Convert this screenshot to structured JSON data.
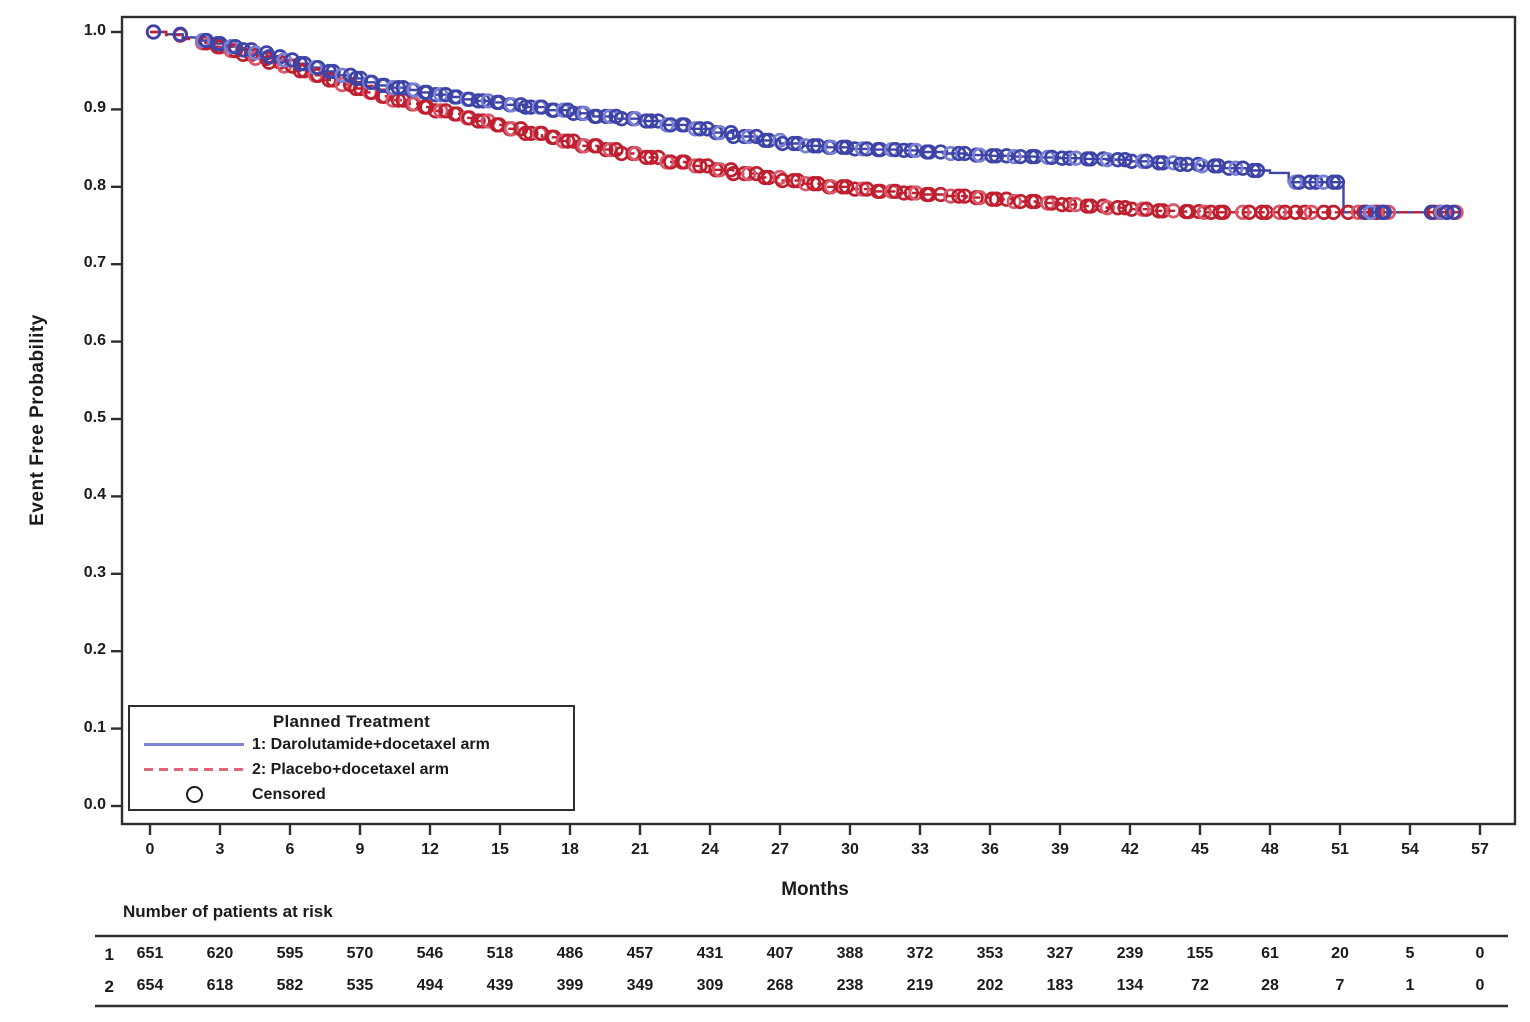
{
  "chart_data": {
    "type": "line",
    "subtype": "kaplan-meier-step",
    "title": "",
    "xlabel": "Months",
    "ylabel": "Event Free Probability",
    "xlim": [
      0,
      57
    ],
    "ylim": [
      0.0,
      1.0
    ],
    "grid": false,
    "legend_position": "bottom-left-inside",
    "x_ticks": [
      0,
      3,
      6,
      9,
      12,
      15,
      18,
      21,
      24,
      27,
      30,
      33,
      36,
      39,
      42,
      45,
      48,
      51,
      54,
      57
    ],
    "y_tick_labels": [
      "0.0",
      "0.1",
      "0.2",
      "0.3",
      "0.4",
      "0.5",
      "0.6",
      "0.7",
      "0.8",
      "0.9",
      "1.0"
    ],
    "colors": {
      "arm1_blue": "#3e44a7",
      "arm1_blue_light": "#7b80d4",
      "arm2_red": "#bf1f2f",
      "arm2_red_light": "#d8596b",
      "legend_blue_line": "#8083d8",
      "legend_red_dash": "#e0677a",
      "axis": "#2e2e2e",
      "text": "#1b1b1b"
    },
    "legend": {
      "title": "Planned Treatment",
      "entries": [
        {
          "label": "1: Darolutamide+docetaxel arm",
          "style": "solid-line"
        },
        {
          "label": "2: Placebo+docetaxel arm",
          "style": "dashed-line"
        },
        {
          "label": "Censored",
          "style": "circle-marker"
        }
      ]
    },
    "series": [
      {
        "name": "1: Darolutamide+docetaxel arm",
        "line": "solid",
        "points": [
          [
            0,
            1.0
          ],
          [
            0.7,
            0.997
          ],
          [
            1.4,
            0.993
          ],
          [
            2,
            0.989
          ],
          [
            2.6,
            0.985
          ],
          [
            3.2,
            0.981
          ],
          [
            3.8,
            0.977
          ],
          [
            4.4,
            0.973
          ],
          [
            5,
            0.968
          ],
          [
            5.6,
            0.964
          ],
          [
            6.2,
            0.959
          ],
          [
            6.8,
            0.954
          ],
          [
            7.4,
            0.949
          ],
          [
            8,
            0.944
          ],
          [
            8.6,
            0.94
          ],
          [
            9.2,
            0.935
          ],
          [
            9.8,
            0.931
          ],
          [
            10.4,
            0.928
          ],
          [
            11,
            0.925
          ],
          [
            11.6,
            0.922
          ],
          [
            12.2,
            0.919
          ],
          [
            12.8,
            0.916
          ],
          [
            13.4,
            0.913
          ],
          [
            14,
            0.911
          ],
          [
            14.6,
            0.909
          ],
          [
            15.2,
            0.906
          ],
          [
            16,
            0.903
          ],
          [
            17,
            0.899
          ],
          [
            18,
            0.895
          ],
          [
            19,
            0.891
          ],
          [
            20,
            0.888
          ],
          [
            21,
            0.885
          ],
          [
            22,
            0.88
          ],
          [
            23,
            0.875
          ],
          [
            24,
            0.87
          ],
          [
            25,
            0.865
          ],
          [
            26,
            0.86
          ],
          [
            27,
            0.856
          ],
          [
            28,
            0.853
          ],
          [
            29,
            0.851
          ],
          [
            30,
            0.849
          ],
          [
            31,
            0.848
          ],
          [
            32,
            0.847
          ],
          [
            33,
            0.845
          ],
          [
            34,
            0.843
          ],
          [
            35,
            0.841
          ],
          [
            36,
            0.84
          ],
          [
            37,
            0.839
          ],
          [
            38,
            0.838
          ],
          [
            39,
            0.837
          ],
          [
            40,
            0.836
          ],
          [
            41,
            0.835
          ],
          [
            42,
            0.833
          ],
          [
            43,
            0.831
          ],
          [
            44,
            0.829
          ],
          [
            45,
            0.827
          ],
          [
            46,
            0.824
          ],
          [
            47,
            0.821
          ],
          [
            48,
            0.818
          ],
          [
            48.8,
            0.806
          ],
          [
            51.15,
            0.767
          ],
          [
            56.1,
            0.767
          ]
        ],
        "censor_runs": [
          {
            "from": 0.15,
            "to": 0.15,
            "step": 1
          },
          {
            "from": 1.3,
            "to": 1.3,
            "step": 1
          },
          {
            "from": 2.2,
            "to": 8.0,
            "step": 0.3
          },
          {
            "from": 8.3,
            "to": 20.0,
            "step": 0.26
          },
          {
            "from": 20.3,
            "to": 34.0,
            "step": 0.3
          },
          {
            "from": 34.3,
            "to": 47.8,
            "step": 0.34
          },
          {
            "from": 49.0,
            "to": 51.0,
            "step": 0.33
          },
          {
            "from": 52.1,
            "to": 53.2,
            "step": 0.3
          },
          {
            "from": 55.0,
            "to": 55.9,
            "step": 0.3
          }
        ]
      },
      {
        "name": "2: Placebo+docetaxel arm",
        "line": "dashed",
        "points": [
          [
            0,
            1.0
          ],
          [
            0.7,
            0.996
          ],
          [
            1.4,
            0.991
          ],
          [
            2,
            0.986
          ],
          [
            2.6,
            0.981
          ],
          [
            3.2,
            0.976
          ],
          [
            3.8,
            0.971
          ],
          [
            4.4,
            0.966
          ],
          [
            5,
            0.961
          ],
          [
            5.6,
            0.956
          ],
          [
            6.2,
            0.95
          ],
          [
            6.8,
            0.944
          ],
          [
            7.4,
            0.938
          ],
          [
            8,
            0.932
          ],
          [
            8.6,
            0.927
          ],
          [
            9.2,
            0.922
          ],
          [
            9.8,
            0.917
          ],
          [
            10.4,
            0.912
          ],
          [
            11,
            0.907
          ],
          [
            11.6,
            0.903
          ],
          [
            12.2,
            0.898
          ],
          [
            12.8,
            0.894
          ],
          [
            13.4,
            0.889
          ],
          [
            14,
            0.885
          ],
          [
            14.6,
            0.88
          ],
          [
            15.2,
            0.875
          ],
          [
            16,
            0.869
          ],
          [
            16.8,
            0.864
          ],
          [
            17.6,
            0.859
          ],
          [
            18.4,
            0.853
          ],
          [
            19.2,
            0.848
          ],
          [
            20,
            0.843
          ],
          [
            21,
            0.838
          ],
          [
            22,
            0.832
          ],
          [
            23,
            0.827
          ],
          [
            24,
            0.822
          ],
          [
            25,
            0.817
          ],
          [
            26,
            0.812
          ],
          [
            27,
            0.808
          ],
          [
            28,
            0.804
          ],
          [
            29,
            0.8
          ],
          [
            30,
            0.797
          ],
          [
            31,
            0.794
          ],
          [
            32,
            0.792
          ],
          [
            33,
            0.79
          ],
          [
            34,
            0.788
          ],
          [
            35,
            0.786
          ],
          [
            36,
            0.784
          ],
          [
            37,
            0.781
          ],
          [
            38,
            0.779
          ],
          [
            39,
            0.777
          ],
          [
            40,
            0.775
          ],
          [
            41,
            0.773
          ],
          [
            42,
            0.771
          ],
          [
            43,
            0.769
          ],
          [
            44,
            0.768
          ],
          [
            45,
            0.767
          ],
          [
            56.1,
            0.767
          ]
        ],
        "censor_runs": [
          {
            "from": 0.15,
            "to": 0.15,
            "step": 1
          },
          {
            "from": 1.3,
            "to": 1.3,
            "step": 1
          },
          {
            "from": 2.2,
            "to": 8.0,
            "step": 0.3
          },
          {
            "from": 8.3,
            "to": 20.0,
            "step": 0.26
          },
          {
            "from": 20.3,
            "to": 34.0,
            "step": 0.3
          },
          {
            "from": 34.3,
            "to": 44.0,
            "step": 0.34
          },
          {
            "from": 44.3,
            "to": 46.2,
            "step": 0.3
          },
          {
            "from": 46.8,
            "to": 50.3,
            "step": 0.38
          },
          {
            "from": 50.8,
            "to": 51.9,
            "step": 0.5
          },
          {
            "from": 52.1,
            "to": 53.2,
            "step": 0.3
          },
          {
            "from": 55.0,
            "to": 55.9,
            "step": 0.3
          }
        ]
      }
    ],
    "risk_table": {
      "header": "Number of patients at risk",
      "rows": [
        {
          "label": "1",
          "values": [
            651,
            620,
            595,
            570,
            546,
            518,
            486,
            457,
            431,
            407,
            388,
            372,
            353,
            327,
            239,
            155,
            61,
            20,
            5,
            0
          ]
        },
        {
          "label": "2",
          "values": [
            654,
            618,
            582,
            535,
            494,
            439,
            399,
            349,
            309,
            268,
            238,
            219,
            202,
            183,
            134,
            72,
            28,
            7,
            1,
            0
          ]
        }
      ]
    }
  }
}
